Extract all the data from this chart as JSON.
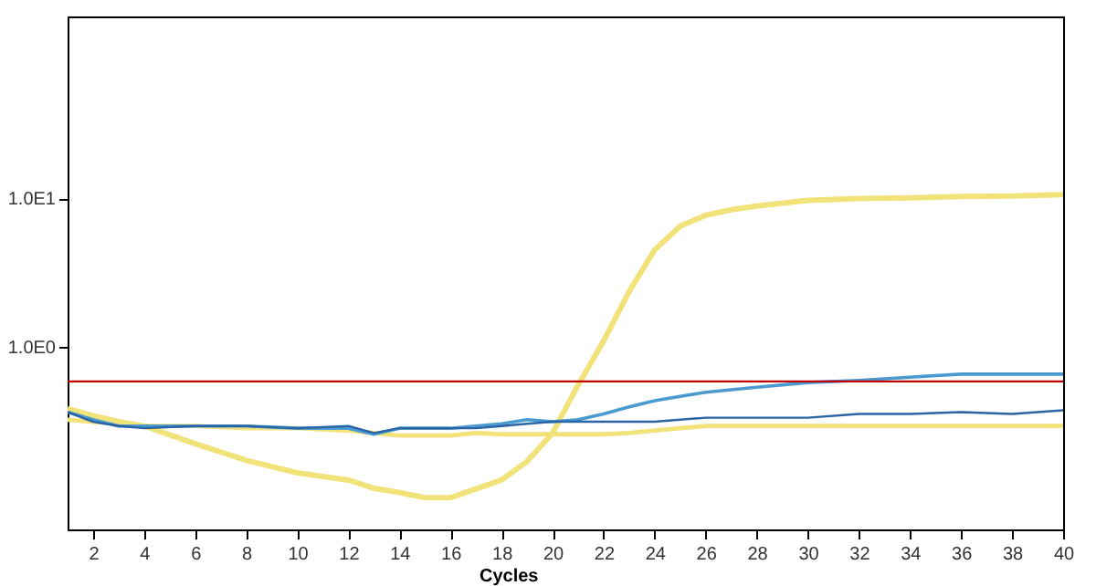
{
  "chart_data": {
    "type": "line",
    "xlabel": "Cycles",
    "log": "y",
    "grid": false,
    "marker": "none",
    "line_style": "solid",
    "xlim": [
      1,
      40
    ],
    "xticks": [
      2,
      4,
      6,
      8,
      10,
      12,
      14,
      16,
      18,
      20,
      22,
      24,
      26,
      28,
      30,
      32,
      34,
      36,
      38,
      40
    ],
    "ylim": [
      0.058,
      170
    ],
    "yticks": [
      {
        "value": 10,
        "label": "1.0E1"
      },
      {
        "value": 1,
        "label": "1.0E0"
      }
    ],
    "x": [
      1,
      2,
      3,
      4,
      6,
      8,
      10,
      12,
      13,
      14,
      15,
      16,
      17,
      18,
      19,
      20,
      21,
      22,
      23,
      24,
      25,
      26,
      27,
      28,
      30,
      32,
      34,
      36,
      38,
      40
    ],
    "series": [
      {
        "color": "#f2e27a",
        "values": [
          0.38,
          0.34,
          0.31,
          0.29,
          0.22,
          0.17,
          0.14,
          0.125,
          0.11,
          0.103,
          0.095,
          0.095,
          0.109,
          0.125,
          0.167,
          0.26,
          0.55,
          1.09,
          2.35,
          4.5,
          6.5,
          7.7,
          8.4,
          8.9,
          9.7,
          10.0,
          10.1,
          10.3,
          10.4,
          10.6
        ]
      },
      {
        "color": "#f2e27a",
        "values": [
          0.32,
          0.31,
          0.3,
          0.29,
          0.29,
          0.28,
          0.28,
          0.27,
          0.26,
          0.25,
          0.25,
          0.25,
          0.26,
          0.255,
          0.255,
          0.255,
          0.255,
          0.255,
          0.26,
          0.27,
          0.28,
          0.29,
          0.29,
          0.29,
          0.29,
          0.29,
          0.29,
          0.29,
          0.29,
          0.29
        ]
      },
      {
        "color": "#4a9ad0",
        "values": [
          0.36,
          0.32,
          0.29,
          0.29,
          0.29,
          0.29,
          0.28,
          0.28,
          0.255,
          0.28,
          0.28,
          0.28,
          0.29,
          0.3,
          0.32,
          0.31,
          0.32,
          0.35,
          0.39,
          0.43,
          0.46,
          0.49,
          0.51,
          0.53,
          0.57,
          0.59,
          0.62,
          0.65,
          0.65,
          0.65
        ]
      },
      {
        "color": "#2a64a4",
        "values": [
          0.36,
          0.31,
          0.29,
          0.28,
          0.29,
          0.29,
          0.28,
          0.29,
          0.26,
          0.28,
          0.28,
          0.28,
          0.28,
          0.29,
          0.3,
          0.31,
          0.31,
          0.31,
          0.31,
          0.31,
          0.32,
          0.33,
          0.33,
          0.33,
          0.33,
          0.35,
          0.35,
          0.36,
          0.35,
          0.37
        ]
      }
    ],
    "ref_lines": [
      {
        "axis": "y",
        "value": 0.58,
        "color": "#c00000"
      }
    ]
  }
}
